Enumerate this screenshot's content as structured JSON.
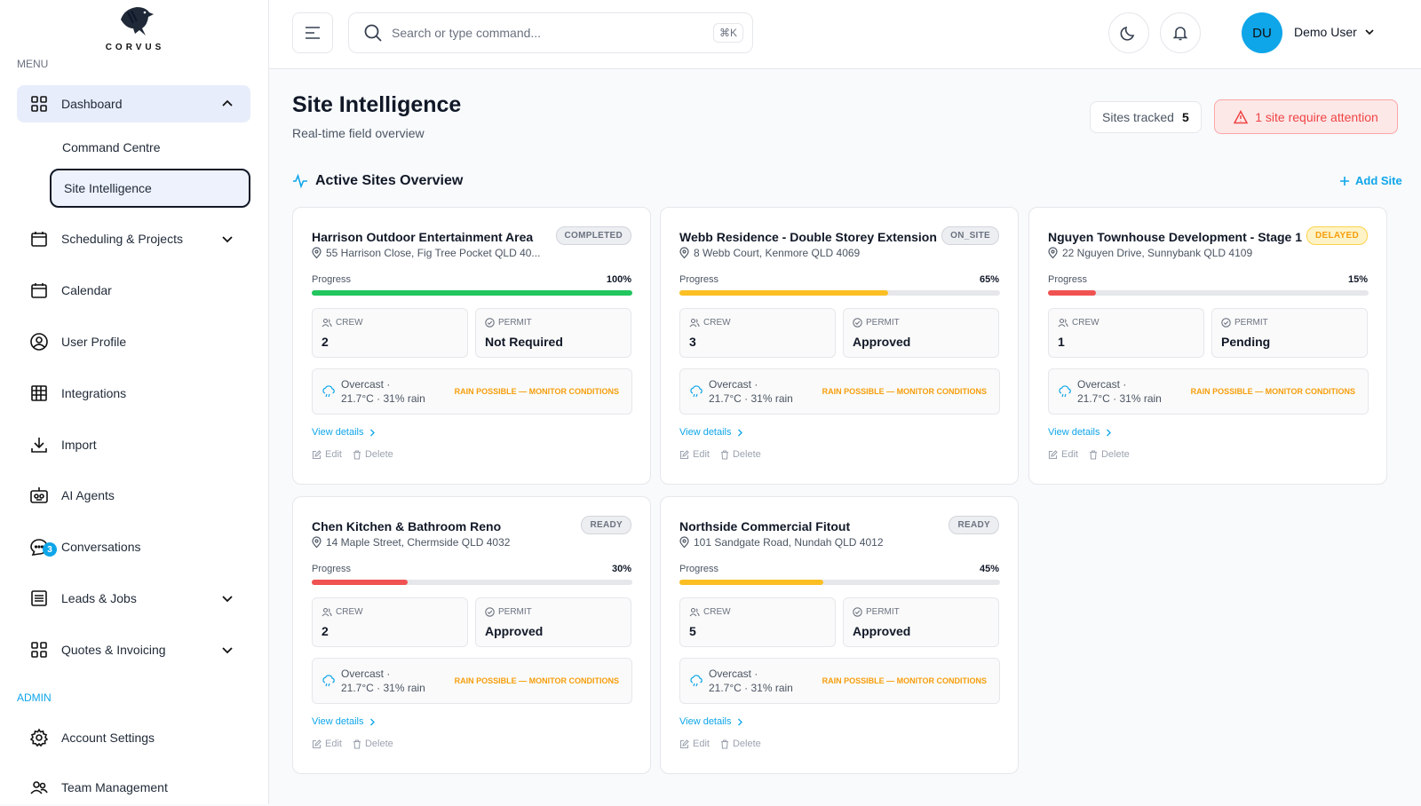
{
  "app": {
    "logo_text": "CORVUS"
  },
  "sidebar": {
    "menu_label": "MENU",
    "admin_label": "ADMIN",
    "items": [
      {
        "label": "Dashboard"
      },
      {
        "label": "Command Centre"
      },
      {
        "label": "Site Intelligence"
      },
      {
        "label": "Scheduling & Projects"
      },
      {
        "label": "Calendar"
      },
      {
        "label": "User Profile"
      },
      {
        "label": "Integrations"
      },
      {
        "label": "Import"
      },
      {
        "label": "AI Agents"
      },
      {
        "label": "Conversations",
        "badge": "3"
      },
      {
        "label": "Leads & Jobs"
      },
      {
        "label": "Quotes & Invoicing"
      },
      {
        "label": "Account Settings"
      },
      {
        "label": "Team Management"
      }
    ]
  },
  "topbar": {
    "search_placeholder": "Search or type command...",
    "shortcut": "⌘K",
    "avatar_initials": "DU",
    "user_name": "Demo User"
  },
  "page": {
    "title": "Site Intelligence",
    "subtitle": "Real-time field overview",
    "sites_tracked_label": "Sites tracked",
    "sites_tracked_count": "5",
    "attention_text": "1 site require attention",
    "section_title": "Active Sites Overview",
    "add_site": "Add Site"
  },
  "card_labels": {
    "progress": "Progress",
    "crew": "CREW",
    "permit": "PERMIT",
    "view_details": "View details",
    "edit": "Edit",
    "delete": "Delete"
  },
  "sites": [
    {
      "title": "Harrison Outdoor Entertainment Area",
      "status": "COMPLETED",
      "status_style": "gray",
      "address": "55 Harrison Close, Fig Tree Pocket QLD 40...",
      "progress": 100,
      "progress_text": "100%",
      "bar_color": "#22c55e",
      "crew": "2",
      "permit": "Not Required",
      "weather_line1": "Overcast ·",
      "weather_line2": "21.7°C · 31% rain",
      "weather_warning": "RAIN POSSIBLE — MONITOR CONDITIONS"
    },
    {
      "title": "Webb Residence - Double Storey Extension",
      "status": "ON_SITE",
      "status_style": "gray",
      "address": "8 Webb Court, Kenmore QLD 4069",
      "progress": 65,
      "progress_text": "65%",
      "bar_color": "#fbbf24",
      "crew": "3",
      "permit": "Approved",
      "weather_line1": "Overcast ·",
      "weather_line2": "21.7°C · 31% rain",
      "weather_warning": "RAIN POSSIBLE — MONITOR CONDITIONS"
    },
    {
      "title": "Nguyen Townhouse Development - Stage 1",
      "status": "DELAYED",
      "status_style": "orange",
      "address": "22 Nguyen Drive, Sunnybank QLD 4109",
      "progress": 15,
      "progress_text": "15%",
      "bar_color": "#f05252",
      "crew": "1",
      "permit": "Pending",
      "weather_line1": "Overcast ·",
      "weather_line2": "21.7°C · 31% rain",
      "weather_warning": "RAIN POSSIBLE — MONITOR CONDITIONS"
    },
    {
      "title": "Chen Kitchen & Bathroom Reno",
      "status": "READY",
      "status_style": "gray",
      "address": "14 Maple Street, Chermside QLD 4032",
      "progress": 30,
      "progress_text": "30%",
      "bar_color": "#f05252",
      "crew": "2",
      "permit": "Approved",
      "weather_line1": "Overcast ·",
      "weather_line2": "21.7°C · 31% rain",
      "weather_warning": "RAIN POSSIBLE — MONITOR CONDITIONS"
    },
    {
      "title": "Northside Commercial Fitout",
      "status": "READY",
      "status_style": "gray",
      "address": "101 Sandgate Road, Nundah QLD 4012",
      "progress": 45,
      "progress_text": "45%",
      "bar_color": "#fbbf24",
      "crew": "5",
      "permit": "Approved",
      "weather_line1": "Overcast ·",
      "weather_line2": "21.7°C · 31% rain",
      "weather_warning": "RAIN POSSIBLE — MONITOR CONDITIONS"
    }
  ]
}
